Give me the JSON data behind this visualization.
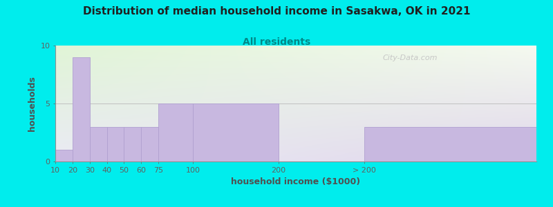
{
  "title": "Distribution of median household income in Sasakwa, OK in 2021",
  "subtitle": "All residents",
  "xlabel": "household income ($1000)",
  "ylabel": "households",
  "background_outer": "#00eded",
  "bar_color": "#c8b8e0",
  "bar_edge_color": "#b0a0d0",
  "watermark": "City-Data.com",
  "ylim": [
    0,
    10
  ],
  "yticks": [
    0,
    5,
    10
  ],
  "values": [
    1,
    9,
    3,
    3,
    3,
    3,
    5,
    5,
    0,
    3
  ],
  "bar_left": [
    0,
    1,
    2,
    3,
    4,
    5,
    6,
    8,
    13,
    18
  ],
  "bar_width": [
    1,
    1,
    1,
    1,
    1,
    1,
    2,
    5,
    5,
    10
  ],
  "xtick_pos": [
    0,
    1,
    2,
    3,
    4,
    5,
    6,
    8,
    13,
    18
  ],
  "xtick_labels": [
    "10",
    "20",
    "30",
    "40",
    "50",
    "60",
    "75",
    "100",
    "200",
    "> 200"
  ],
  "xlim": [
    0,
    28
  ],
  "grid_y": 5,
  "title_fontsize": 11,
  "subtitle_fontsize": 10,
  "axis_label_fontsize": 9,
  "tick_fontsize": 8
}
